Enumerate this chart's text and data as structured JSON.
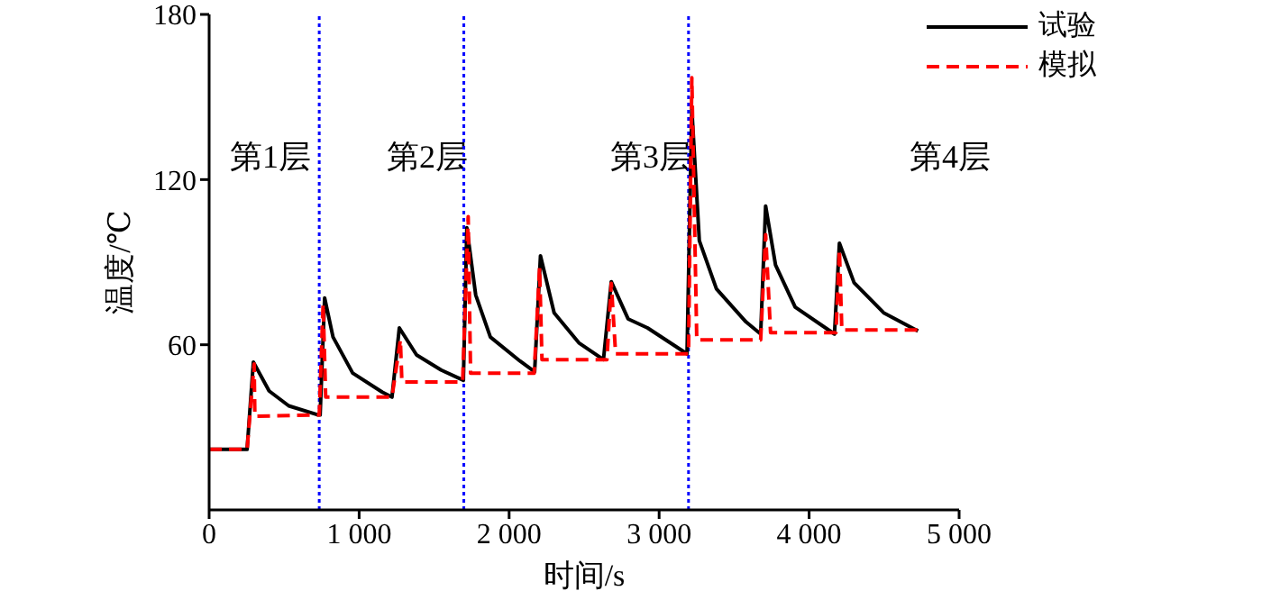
{
  "chart_data": {
    "type": "line",
    "xlabel": "时间/s",
    "ylabel": "温度/℃",
    "xlim": [
      0,
      5000
    ],
    "xticks": [
      0,
      {
        "value": 1000,
        "label": "1 000"
      },
      {
        "value": 2000,
        "label": "2 000"
      },
      {
        "value": 3000,
        "label": "3 000"
      },
      {
        "value": 4000,
        "label": "4 000"
      },
      {
        "value": 5000,
        "label": "5 000"
      }
    ],
    "ylim": [
      0,
      180
    ],
    "yticks": [
      60,
      120,
      180
    ],
    "grid": false,
    "legend": "top right",
    "marker": "none",
    "series": [
      {
        "name": "试验",
        "color": "#000000",
        "line_style": "solid",
        "x": [
          0,
          253,
          295,
          400,
          531,
          728,
          740,
          770,
          826,
          957,
          1154,
          1219,
          1268,
          1383,
          1547,
          1695,
          1718,
          1777,
          1875,
          2072,
          2170,
          2209,
          2300,
          2465,
          2629,
          2681,
          2793,
          2923,
          3186,
          3218,
          3268,
          3382,
          3579,
          3677,
          3710,
          3776,
          3907,
          4169,
          4202,
          4300,
          4497,
          4726
        ],
        "values": [
          22,
          22,
          53.7,
          43.2,
          37.8,
          34.5,
          34.5,
          77,
          62.8,
          49.7,
          42.8,
          41,
          66.1,
          56.3,
          50.8,
          47.1,
          102.5,
          78.1,
          62.8,
          54.1,
          50.2,
          92.3,
          71.6,
          60.7,
          54.6,
          82.9,
          69.4,
          66.1,
          56.7,
          145.7,
          97.8,
          80.3,
          68.3,
          63.9,
          110.4,
          89,
          73.7,
          63.9,
          96.9,
          82.5,
          71.6,
          65
        ]
      },
      {
        "name": "模拟",
        "color": "#ff0000",
        "line_style": "dashed",
        "x": [
          0,
          253,
          300,
          305,
          734,
          760,
          777,
          1219,
          1275,
          1285,
          1690,
          1727,
          1743,
          2167,
          2203,
          2219,
          2652,
          2681,
          2710,
          3196,
          3218,
          3251,
          3677,
          3710,
          3743,
          4179,
          4202,
          4218,
          4726
        ],
        "values": [
          22,
          22,
          53,
          34,
          34.5,
          74.9,
          41,
          41,
          61.8,
          46.5,
          46.5,
          106.5,
          49.7,
          49.7,
          88,
          54.6,
          54.6,
          82.3,
          56.7,
          56.7,
          157,
          61.8,
          61.8,
          100,
          64.4,
          64.4,
          94.5,
          65.4,
          65.4
        ]
      }
    ],
    "ref_lines": [
      {
        "axis": "x",
        "value": 734,
        "color": "#0000ff",
        "line_style": "dotted"
      },
      {
        "axis": "x",
        "value": 1698,
        "color": "#0000ff",
        "line_style": "dotted"
      },
      {
        "axis": "x",
        "value": 3196,
        "color": "#0000ff",
        "line_style": "dotted"
      }
    ],
    "annotations": [
      "第1层",
      "第2层",
      "第3层",
      "第4层"
    ]
  }
}
